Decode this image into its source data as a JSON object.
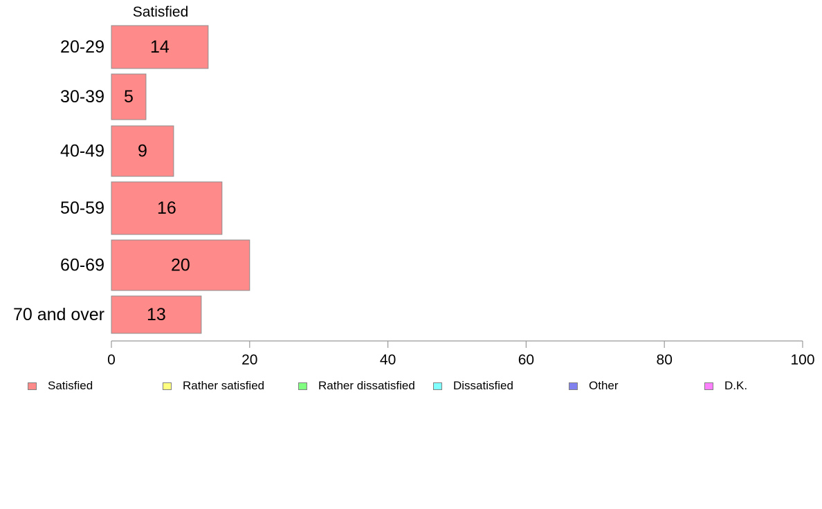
{
  "chart_data": {
    "type": "bar",
    "orientation": "horizontal",
    "stacked": true,
    "categories": [
      "20-29",
      "30-39",
      "40-49",
      "50-59",
      "60-69",
      "70 and over"
    ],
    "series": [
      {
        "name": "Satisfied",
        "color": "#ff8a8a",
        "values": [
          14,
          5,
          9,
          16,
          20,
          13
        ]
      },
      {
        "name": "Rather satisfied",
        "color": "#ffff80",
        "values": [
          0,
          0,
          0,
          0,
          0,
          0
        ]
      },
      {
        "name": "Rather dissatisfied",
        "color": "#80ff80",
        "values": [
          0,
          0,
          0,
          0,
          0,
          0
        ]
      },
      {
        "name": "Dissatisfied",
        "color": "#80ffff",
        "values": [
          0,
          0,
          0,
          0,
          0,
          0
        ]
      },
      {
        "name": "Other",
        "color": "#8080ee",
        "values": [
          0,
          0,
          0,
          0,
          0,
          0
        ]
      },
      {
        "name": "D.K.",
        "color": "#ff80ff",
        "values": [
          0,
          0,
          0,
          0,
          0,
          0
        ]
      }
    ],
    "series_header": "Satisfied",
    "xlim": [
      0,
      100
    ],
    "xticks": [
      0,
      20,
      40,
      60,
      80,
      100
    ],
    "grid": false,
    "legend_position": "bottom"
  }
}
